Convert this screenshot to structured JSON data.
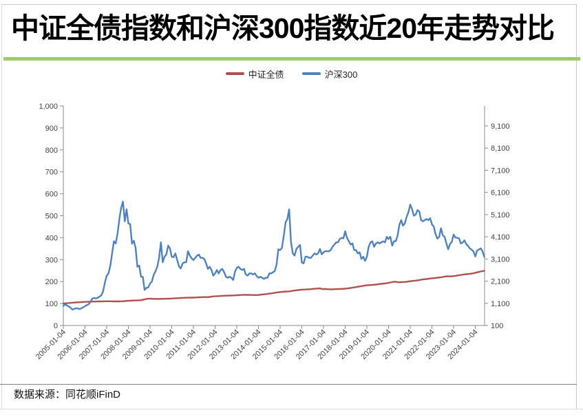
{
  "page": {
    "title": "中证全债指数和沪深300指数近20年走势对比",
    "source_note": "数据来源：同花顺iFinD",
    "accent_green": "#9bcb6b"
  },
  "legend": [
    {
      "label": "中证全债",
      "color": "#b0504d"
    },
    {
      "label": "沪深300",
      "color": "#4f81bd"
    }
  ],
  "chart_data": {
    "type": "line",
    "title": "中证全债指数和沪深300指数近20年走势对比",
    "x_start": "2005-01",
    "x_step_months": 1,
    "x_tick_labels": [
      "2005-01-04",
      "2006-01-04",
      "2007-01-04",
      "2008-01-04",
      "2009-01-04",
      "2010-01-04",
      "2011-01-04",
      "2012-01-04",
      "2013-01-04",
      "2014-01-04",
      "2015-01-04",
      "2016-01-04",
      "2017-01-04",
      "2018-01-04",
      "2019-01-04",
      "2020-01-04",
      "2021-01-04",
      "2022-01-04",
      "2023-01-04",
      "2024-01-04"
    ],
    "left_axis": {
      "min": 0,
      "max": 1000,
      "tick_step": 100,
      "tick_labels": [
        "0",
        "100",
        "200",
        "300",
        "400",
        "500",
        "600",
        "700",
        "800",
        "900",
        "1,000"
      ]
    },
    "right_axis": {
      "min": 100,
      "max": 10000,
      "tick_step": 1000,
      "tick_labels": [
        "100",
        "1,100",
        "2,100",
        "3,100",
        "4,100",
        "5,100",
        "6,100",
        "7,100",
        "8,100",
        "9,100"
      ]
    },
    "grid": false,
    "legend_position": "top-center",
    "series": [
      {
        "name": "中证全债",
        "axis": "left",
        "color": "#b0504d",
        "values": [
          100,
          100.8,
          101.5,
          102.2,
          103,
          103.8,
          104.4,
          105,
          105.5,
          106,
          106.5,
          107,
          107.4,
          107.8,
          108.1,
          108.4,
          108.7,
          109,
          109.2,
          109.4,
          109.6,
          109.8,
          110,
          110.3,
          110.4,
          110.4,
          110.2,
          110,
          109.8,
          109.6,
          109.6,
          109.8,
          110,
          110.4,
          111,
          111.8,
          112.4,
          113,
          113.4,
          113.7,
          114,
          114.2,
          114.6,
          115.4,
          116.6,
          119,
          121,
          122,
          122,
          121.6,
          121.4,
          121.2,
          121,
          121,
          121.2,
          121.4,
          121.6,
          121.8,
          122.2,
          122.5,
          123,
          123.4,
          123.9,
          124.4,
          124.9,
          125.4,
          125.8,
          126,
          126.3,
          126.6,
          126.8,
          127,
          127.1,
          127.5,
          128,
          128.4,
          128.7,
          129,
          129.4,
          129.5,
          129.2,
          130,
          131.4,
          132.5,
          133,
          133.5,
          134,
          134.5,
          135,
          135.4,
          135.8,
          136.1,
          136.5,
          136.8,
          137,
          137.4,
          138,
          138.4,
          138.9,
          139.3,
          139.8,
          139.5,
          139.4,
          139.1,
          139,
          139,
          138.6,
          138.5,
          139,
          140,
          141,
          142,
          143,
          144,
          145,
          146,
          147.2,
          148.5,
          150,
          151.5,
          152.4,
          153,
          153.6,
          154.4,
          155,
          155.6,
          156.6,
          158,
          159.2,
          160.5,
          161.5,
          162.5,
          163,
          163.5,
          164,
          164.5,
          165,
          165.6,
          166.5,
          167.4,
          168,
          168.5,
          169,
          166.5,
          166,
          166,
          165.6,
          165.1,
          164.7,
          165,
          165.4,
          165.6,
          166,
          166.4,
          166.6,
          167,
          167.6,
          168.6,
          170,
          171,
          172.2,
          173.6,
          175,
          176.5,
          177.6,
          179,
          180.5,
          182,
          183,
          183.6,
          184.4,
          184.6,
          185.5,
          186.5,
          187.5,
          189,
          189.6,
          190.5,
          191.5,
          192.5,
          194,
          196,
          197.6,
          199.5,
          199,
          197.6,
          197,
          197.5,
          198,
          198.5,
          199,
          200.5,
          201.5,
          202.5,
          203.5,
          204.5,
          205.5,
          206.6,
          208.5,
          210,
          210.6,
          211.5,
          212.5,
          214,
          215,
          215.6,
          216.5,
          217.5,
          218.5,
          219.5,
          221,
          222.5,
          223.5,
          224.5,
          223.5,
          224,
          225,
          226,
          227.5,
          229,
          230.5,
          231.5,
          232.5,
          233.5,
          234.5,
          235.5,
          236.5,
          238,
          240,
          242,
          244,
          246,
          247.5,
          249
        ]
      },
      {
        "name": "沪深300",
        "axis": "right",
        "color": "#4f81bd",
        "values": [
          982,
          1060,
          1000,
          960,
          900,
          820,
          845,
          880,
          870,
          840,
          872,
          924,
          970,
          1020,
          1060,
          1160,
          1310,
          1340,
          1320,
          1350,
          1400,
          1450,
          1650,
          2041,
          2340,
          2450,
          2800,
          3350,
          3900,
          3800,
          4250,
          4900,
          5400,
          5688,
          4800,
          5338,
          4700,
          4670,
          3790,
          3920,
          3600,
          2750,
          2800,
          2300,
          2290,
          1700,
          1800,
          1817,
          2000,
          2080,
          2380,
          2550,
          2750,
          3150,
          3850,
          2950,
          3200,
          3300,
          3700,
          3575,
          3200,
          3180,
          3350,
          3050,
          2770,
          2670,
          2900,
          2950,
          2950,
          3450,
          3250,
          3128,
          3050,
          3150,
          3250,
          3300,
          3150,
          3150,
          3100,
          2900,
          2650,
          2750,
          2600,
          2346,
          2450,
          2600,
          2450,
          2600,
          2650,
          2500,
          2300,
          2250,
          2300,
          2250,
          2150,
          2523,
          2700,
          2750,
          2650,
          2600,
          2650,
          2400,
          2350,
          2450,
          2450,
          2400,
          2450,
          2330,
          2250,
          2300,
          2250,
          2200,
          2250,
          2250,
          2450,
          2450,
          2500,
          2550,
          2850,
          3534,
          3500,
          3600,
          4150,
          4750,
          4900,
          5335,
          3850,
          3350,
          3250,
          3550,
          3650,
          3731,
          2950,
          2900,
          3200,
          3200,
          3150,
          3150,
          3250,
          3350,
          3300,
          3350,
          3550,
          3310,
          3400,
          3450,
          3450,
          3450,
          3500,
          3650,
          3750,
          3850,
          3850,
          4000,
          4050,
          4031,
          4350,
          4050,
          3900,
          3750,
          3800,
          3500,
          3500,
          3350,
          3400,
          3100,
          3200,
          3011,
          3200,
          3650,
          3850,
          3900,
          3650,
          3800,
          3850,
          3800,
          3850,
          3900,
          3850,
          4097,
          4000,
          4100,
          3700,
          3900,
          3900,
          4150,
          4650,
          4850,
          4600,
          4700,
          5000,
          5211,
          5550,
          5350,
          5050,
          5100,
          5300,
          5250,
          4850,
          4800,
          4850,
          4900,
          4850,
          4940,
          4660,
          4570,
          4220,
          4020,
          4090,
          4485,
          4170,
          4100,
          3805,
          3540,
          3775,
          3871,
          4200,
          4070,
          4050,
          4030,
          3800,
          3840,
          3940,
          3765,
          3690,
          3570,
          3520,
          3435,
          3215,
          3480,
          3530,
          3580,
          3450,
          3190
        ]
      }
    ]
  }
}
